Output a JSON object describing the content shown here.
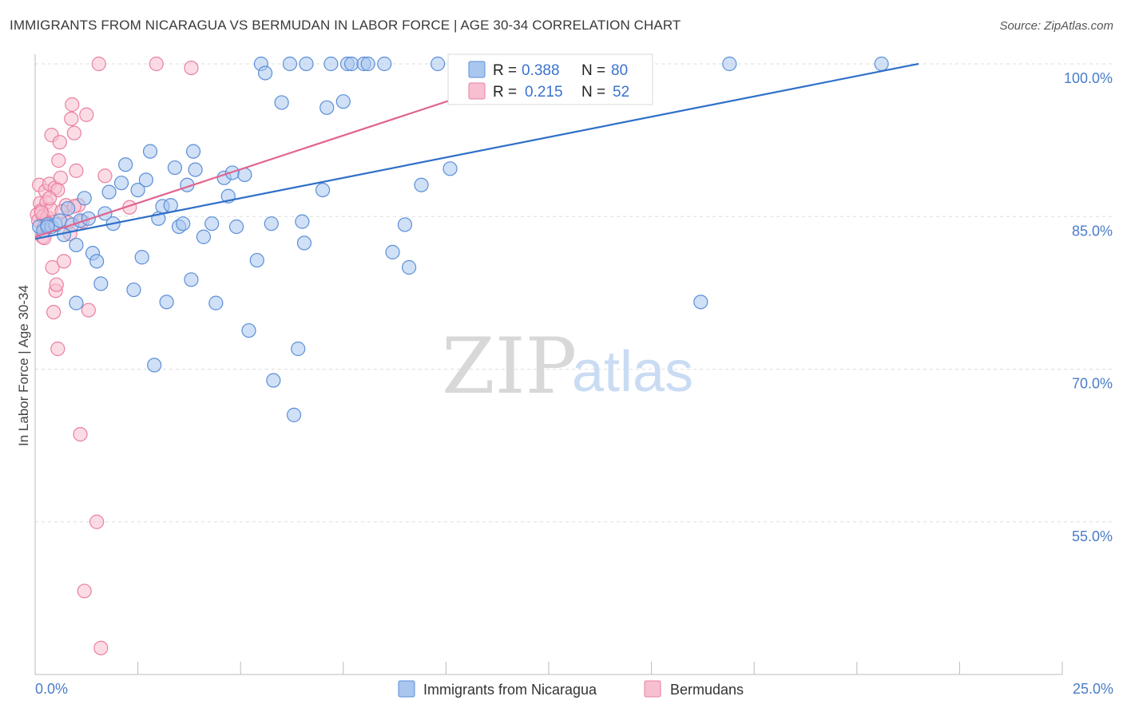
{
  "header": {
    "title": "IMMIGRANTS FROM NICARAGUA VS BERMUDAN IN LABOR FORCE | AGE 30-34 CORRELATION CHART",
    "source": "Source: ZipAtlas.com"
  },
  "watermark": {
    "zip": "ZIP",
    "atlas": "atlas"
  },
  "colors": {
    "blue_fill": "#a9c6ef",
    "blue_stroke": "#5b8fd8",
    "blue_line": "#2f6fc8",
    "pink_fill": "#f7bfd0",
    "pink_stroke": "#ea7fa0",
    "pink_line": "#e0648e",
    "grid": "#dddddd",
    "axis": "#bbbbbb"
  },
  "legend_stats": [
    {
      "r_label": "R =",
      "r_value": "0.388",
      "n_label": "N =",
      "n_value": "80"
    },
    {
      "r_label": "R =",
      "r_value": "0.215",
      "n_label": "N =",
      "n_value": "52"
    }
  ],
  "chart_data": {
    "type": "scatter",
    "title": "IMMIGRANTS FROM NICARAGUA VS BERMUDAN IN LABOR FORCE | AGE 30-34 CORRELATION CHART",
    "xlabel": "",
    "ylabel": "In Labor Force | Age 30-34",
    "xlim": [
      0,
      25
    ],
    "ylim": [
      40,
      100
    ],
    "x_tick_labels": [
      "0.0%",
      "25.0%"
    ],
    "y_ticks": [
      55,
      70,
      85,
      100
    ],
    "y_tick_labels": [
      "55.0%",
      "70.0%",
      "85.0%",
      "100.0%"
    ],
    "grid": true,
    "legend_position": "bottom",
    "series": [
      {
        "name": "Immigrants from Nicaragua",
        "color": "#a9c6ef",
        "r": "0.388",
        "n": "80",
        "trend": [
          [
            0,
            82.8
          ],
          [
            21.5,
            100
          ]
        ],
        "points": [
          [
            0.1,
            84.0
          ],
          [
            0.2,
            83.6
          ],
          [
            0.3,
            84.2
          ],
          [
            0.4,
            84.0
          ],
          [
            0.5,
            84.2
          ],
          [
            0.6,
            84.6
          ],
          [
            0.7,
            83.2
          ],
          [
            0.8,
            85.8
          ],
          [
            0.9,
            84.2
          ],
          [
            1.1,
            84.6
          ],
          [
            1.3,
            84.8
          ],
          [
            1.0,
            82.2
          ],
          [
            1.2,
            86.8
          ],
          [
            1.4,
            81.4
          ],
          [
            1.5,
            80.6
          ],
          [
            1.6,
            78.4
          ],
          [
            1.7,
            85.3
          ],
          [
            1.8,
            87.4
          ],
          [
            1.9,
            84.3
          ],
          [
            2.1,
            88.3
          ],
          [
            2.2,
            90.1
          ],
          [
            2.4,
            77.8
          ],
          [
            2.5,
            87.6
          ],
          [
            2.6,
            81.0
          ],
          [
            2.7,
            88.6
          ],
          [
            2.8,
            91.4
          ],
          [
            2.9,
            70.4
          ],
          [
            3.0,
            84.8
          ],
          [
            3.1,
            86.0
          ],
          [
            3.2,
            76.6
          ],
          [
            3.3,
            86.1
          ],
          [
            3.4,
            89.8
          ],
          [
            3.5,
            84.0
          ],
          [
            3.6,
            84.3
          ],
          [
            3.7,
            88.1
          ],
          [
            3.8,
            78.8
          ],
          [
            3.85,
            91.4
          ],
          [
            3.9,
            89.6
          ],
          [
            4.1,
            83.0
          ],
          [
            4.3,
            84.3
          ],
          [
            4.4,
            76.5
          ],
          [
            4.6,
            88.8
          ],
          [
            4.7,
            87.0
          ],
          [
            4.8,
            89.3
          ],
          [
            4.9,
            84.0
          ],
          [
            5.1,
            89.1
          ],
          [
            5.2,
            73.8
          ],
          [
            5.4,
            80.7
          ],
          [
            5.5,
            100.0
          ],
          [
            5.6,
            99.1
          ],
          [
            5.75,
            84.3
          ],
          [
            5.8,
            68.9
          ],
          [
            6.0,
            96.2
          ],
          [
            6.2,
            100.0
          ],
          [
            6.3,
            65.5
          ],
          [
            6.4,
            72.0
          ],
          [
            6.5,
            84.5
          ],
          [
            6.55,
            82.4
          ],
          [
            6.6,
            100.0
          ],
          [
            7.0,
            87.6
          ],
          [
            7.1,
            95.7
          ],
          [
            7.2,
            100.0
          ],
          [
            7.5,
            96.3
          ],
          [
            7.6,
            100.0
          ],
          [
            7.7,
            100.0
          ],
          [
            8.0,
            100.0
          ],
          [
            8.1,
            100.0
          ],
          [
            8.5,
            100.0
          ],
          [
            8.7,
            81.5
          ],
          [
            9.0,
            84.2
          ],
          [
            9.1,
            80.0
          ],
          [
            9.4,
            88.1
          ],
          [
            9.8,
            100.0
          ],
          [
            10.1,
            89.7
          ],
          [
            10.4,
            98.6
          ],
          [
            16.2,
            76.6
          ],
          [
            16.9,
            100.0
          ],
          [
            20.6,
            100.0
          ],
          [
            1.0,
            76.5
          ],
          [
            0.3,
            84.0
          ]
        ]
      },
      {
        "name": "Bermudans",
        "color": "#f7bfd0",
        "r": "0.215",
        "n": "52",
        "trend": [
          [
            0,
            83.0
          ],
          [
            12.8,
            100
          ]
        ],
        "points": [
          [
            0.05,
            85.2
          ],
          [
            0.08,
            84.6
          ],
          [
            0.1,
            88.1
          ],
          [
            0.12,
            86.3
          ],
          [
            0.15,
            85.6
          ],
          [
            0.18,
            83.0
          ],
          [
            0.2,
            85.0
          ],
          [
            0.22,
            84.0
          ],
          [
            0.25,
            87.5
          ],
          [
            0.28,
            86.4
          ],
          [
            0.3,
            84.9
          ],
          [
            0.32,
            84.3
          ],
          [
            0.35,
            88.2
          ],
          [
            0.38,
            85.7
          ],
          [
            0.4,
            93.0
          ],
          [
            0.42,
            80.0
          ],
          [
            0.45,
            75.6
          ],
          [
            0.48,
            87.8
          ],
          [
            0.5,
            77.7
          ],
          [
            0.52,
            78.3
          ],
          [
            0.55,
            72.0
          ],
          [
            0.57,
            90.5
          ],
          [
            0.6,
            92.3
          ],
          [
            0.62,
            88.8
          ],
          [
            0.7,
            80.6
          ],
          [
            0.75,
            86.1
          ],
          [
            0.8,
            84.4
          ],
          [
            0.85,
            83.3
          ],
          [
            0.88,
            94.6
          ],
          [
            0.9,
            96.0
          ],
          [
            0.95,
            93.2
          ],
          [
            1.0,
            89.5
          ],
          [
            1.05,
            86.1
          ],
          [
            1.1,
            63.6
          ],
          [
            1.15,
            84.5
          ],
          [
            1.2,
            48.2
          ],
          [
            1.25,
            95.0
          ],
          [
            1.3,
            75.8
          ],
          [
            1.5,
            55.0
          ],
          [
            1.55,
            100.0
          ],
          [
            1.6,
            42.6
          ],
          [
            1.7,
            89.0
          ],
          [
            2.3,
            85.9
          ],
          [
            2.95,
            100.0
          ],
          [
            3.8,
            99.6
          ],
          [
            0.55,
            87.6
          ],
          [
            0.65,
            85.5
          ],
          [
            0.35,
            86.8
          ],
          [
            0.22,
            82.9
          ],
          [
            0.15,
            85.4
          ],
          [
            0.95,
            86.0
          ],
          [
            12.8,
            100.0
          ]
        ]
      }
    ]
  }
}
